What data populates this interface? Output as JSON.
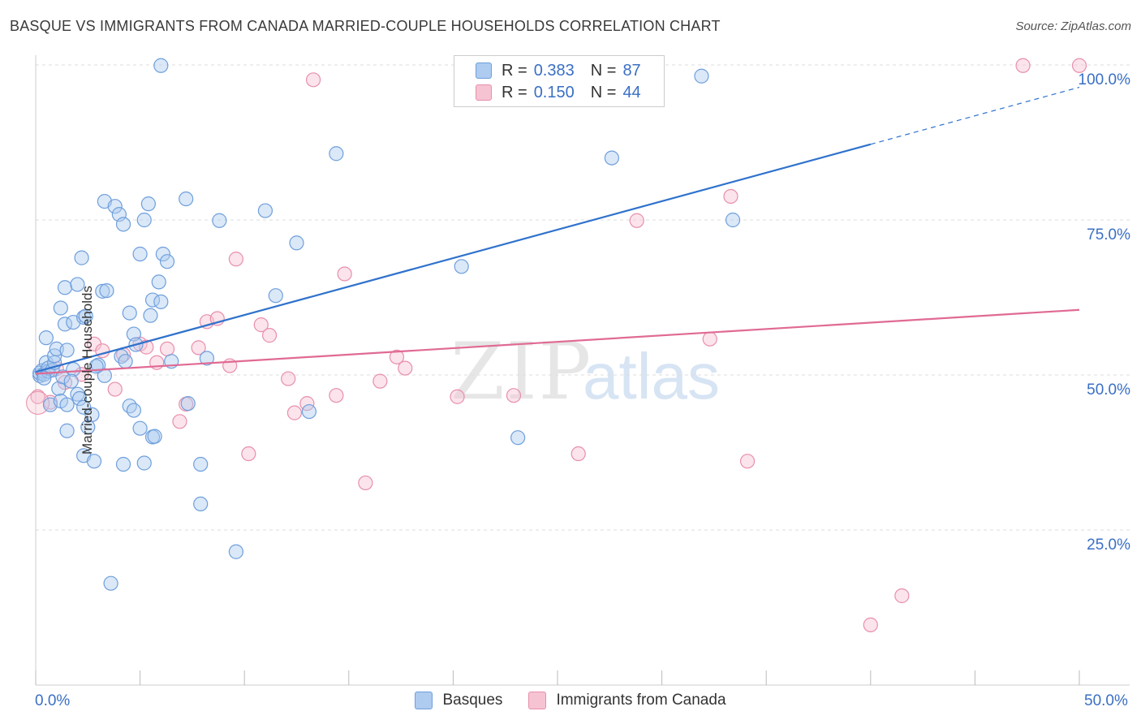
{
  "header": {
    "title": "BASQUE VS IMMIGRANTS FROM CANADA MARRIED-COUPLE HOUSEHOLDS CORRELATION CHART",
    "source": "Source: ZipAtlas.com"
  },
  "watermark": {
    "zip": "ZIP",
    "atlas": "atlas"
  },
  "legend_top": {
    "rows": [
      {
        "r_label": "R =",
        "r_value": "0.383",
        "n_label": "N =",
        "n_value": "87"
      },
      {
        "r_label": "R =",
        "r_value": "0.150",
        "n_label": "N =",
        "n_value": "44"
      }
    ]
  },
  "legend_bottom": {
    "items": [
      "Basques",
      "Immigrants from Canada"
    ]
  },
  "colors": {
    "blue_fill": "#aecbf0",
    "blue_stroke": "#6f9fdc",
    "blue_line": "#2f72cc",
    "pink_fill": "#f6c3d2",
    "pink_stroke": "#e88fab",
    "pink_line": "#e06a94",
    "tick_text": "#3a6fc4",
    "grid": "#dddddd"
  },
  "chart_data": {
    "type": "scatter",
    "title": "BASQUE VS IMMIGRANTS FROM CANADA MARRIED-COUPLE HOUSEHOLDS CORRELATION CHART",
    "xlabel": "",
    "ylabel": "Married-couple Households",
    "xlim": [
      0,
      50
    ],
    "ylim": [
      0,
      102
    ],
    "x_tick_labels": [
      "0.0%",
      "50.0%"
    ],
    "y_ticks": [
      25,
      50,
      75,
      100
    ],
    "y_tick_labels": [
      "25.0%",
      "50.0%",
      "75.0%",
      "100.0%"
    ],
    "series": [
      {
        "name": "Basques",
        "r": 0.383,
        "n": 87,
        "trend": {
          "x0": 0,
          "y0": 50.5,
          "x1": 40,
          "y1": 87.2,
          "dash_to_x": 50,
          "dash_to_y": 96.4
        },
        "points": [
          [
            0.2,
            49.9
          ],
          [
            0.2,
            50.3
          ],
          [
            0.3,
            50.7
          ],
          [
            0.4,
            50.1
          ],
          [
            0.5,
            52.0
          ],
          [
            0.6,
            50.6
          ],
          [
            0.6,
            51.1
          ],
          [
            0.8,
            50.8
          ],
          [
            0.9,
            52.0
          ],
          [
            0.9,
            53.1
          ],
          [
            1.0,
            54.2
          ],
          [
            0.5,
            56.0
          ],
          [
            0.4,
            49.5
          ],
          [
            0.7,
            45.2
          ],
          [
            1.1,
            47.8
          ],
          [
            1.2,
            45.8
          ],
          [
            1.5,
            45.2
          ],
          [
            1.3,
            49.7
          ],
          [
            1.5,
            54.0
          ],
          [
            1.8,
            50.9
          ],
          [
            1.7,
            49.0
          ],
          [
            2.0,
            46.9
          ],
          [
            2.1,
            46.2
          ],
          [
            2.3,
            44.8
          ],
          [
            2.5,
            41.6
          ],
          [
            2.7,
            43.6
          ],
          [
            1.5,
            41.0
          ],
          [
            2.3,
            37.0
          ],
          [
            2.8,
            36.1
          ],
          [
            1.2,
            60.8
          ],
          [
            1.4,
            58.2
          ],
          [
            1.8,
            58.5
          ],
          [
            2.3,
            59.3
          ],
          [
            2.4,
            59.5
          ],
          [
            1.4,
            64.1
          ],
          [
            2.0,
            64.6
          ],
          [
            2.2,
            68.9
          ],
          [
            3.2,
            63.5
          ],
          [
            3.4,
            63.6
          ],
          [
            3.3,
            78.0
          ],
          [
            3.8,
            77.2
          ],
          [
            4.0,
            75.9
          ],
          [
            4.2,
            74.3
          ],
          [
            5.2,
            75.0
          ],
          [
            5.4,
            77.6
          ],
          [
            5.0,
            69.5
          ],
          [
            6.1,
            69.5
          ],
          [
            6.3,
            68.3
          ],
          [
            5.9,
            65.0
          ],
          [
            5.6,
            62.1
          ],
          [
            6.0,
            61.8
          ],
          [
            4.5,
            60.0
          ],
          [
            5.5,
            59.6
          ],
          [
            4.7,
            56.6
          ],
          [
            4.8,
            54.9
          ],
          [
            4.1,
            53.0
          ],
          [
            4.3,
            52.2
          ],
          [
            3.0,
            51.6
          ],
          [
            3.3,
            49.9
          ],
          [
            2.9,
            51.4
          ],
          [
            4.5,
            45.0
          ],
          [
            4.7,
            44.3
          ],
          [
            5.0,
            41.4
          ],
          [
            5.6,
            40.0
          ],
          [
            5.7,
            40.1
          ],
          [
            4.2,
            35.6
          ],
          [
            5.2,
            35.8
          ],
          [
            3.6,
            16.4
          ],
          [
            6.5,
            52.2
          ],
          [
            7.3,
            45.4
          ],
          [
            8.2,
            52.7
          ],
          [
            7.9,
            35.6
          ],
          [
            7.2,
            78.4
          ],
          [
            8.8,
            74.9
          ],
          [
            11.0,
            76.5
          ],
          [
            12.5,
            71.3
          ],
          [
            11.5,
            62.8
          ],
          [
            13.1,
            44.1
          ],
          [
            7.9,
            29.2
          ],
          [
            9.6,
            21.5
          ],
          [
            14.4,
            85.7
          ],
          [
            20.4,
            67.5
          ],
          [
            23.1,
            39.9
          ],
          [
            27.6,
            85.0
          ],
          [
            31.9,
            98.2
          ],
          [
            33.4,
            75.0
          ],
          [
            6.0,
            99.9
          ]
        ]
      },
      {
        "name": "Immigrants from Canada",
        "r": 0.15,
        "n": 44,
        "trend": {
          "x0": 0,
          "y0": 50.2,
          "x1": 50,
          "y1": 60.5
        },
        "points": [
          [
            0.1,
            46.5
          ],
          [
            0.7,
            45.6
          ],
          [
            1.0,
            51.0
          ],
          [
            1.4,
            48.8
          ],
          [
            2.2,
            50.1
          ],
          [
            2.8,
            55.0
          ],
          [
            3.2,
            53.9
          ],
          [
            3.8,
            47.7
          ],
          [
            4.2,
            53.3
          ],
          [
            5.0,
            55.0
          ],
          [
            5.3,
            54.5
          ],
          [
            5.8,
            52.0
          ],
          [
            6.3,
            54.2
          ],
          [
            6.9,
            42.5
          ],
          [
            7.2,
            45.3
          ],
          [
            7.8,
            54.4
          ],
          [
            8.2,
            58.6
          ],
          [
            8.7,
            59.1
          ],
          [
            9.3,
            51.5
          ],
          [
            9.6,
            68.7
          ],
          [
            10.2,
            37.3
          ],
          [
            10.8,
            58.1
          ],
          [
            11.2,
            56.4
          ],
          [
            12.1,
            49.4
          ],
          [
            12.4,
            43.9
          ],
          [
            13.0,
            45.4
          ],
          [
            13.3,
            97.6
          ],
          [
            14.4,
            46.7
          ],
          [
            14.8,
            66.3
          ],
          [
            15.8,
            32.6
          ],
          [
            16.5,
            49.0
          ],
          [
            17.3,
            52.9
          ],
          [
            17.7,
            51.1
          ],
          [
            20.2,
            46.5
          ],
          [
            22.9,
            46.7
          ],
          [
            26.0,
            37.3
          ],
          [
            28.8,
            74.9
          ],
          [
            32.3,
            55.8
          ],
          [
            33.3,
            78.8
          ],
          [
            34.1,
            36.1
          ],
          [
            40.0,
            9.7
          ],
          [
            41.5,
            14.4
          ],
          [
            47.3,
            99.9
          ],
          [
            50.0,
            99.9
          ]
        ]
      }
    ]
  }
}
